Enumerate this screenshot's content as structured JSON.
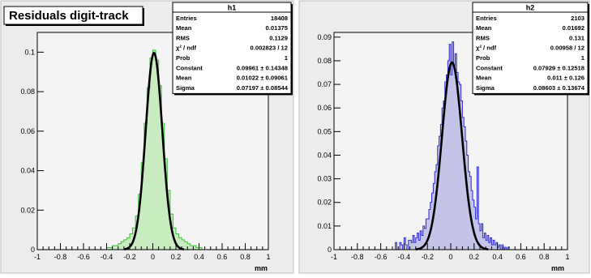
{
  "canvas_title": "Residuals digit-track",
  "colors": {
    "pad_bg": "#ececec",
    "frame_bg": "#f4f4f4",
    "fit_line": "#000000",
    "h1_fill": "#c8ecc0",
    "h1_line": "#3cc03c",
    "h2_fill": "#c4c4e8",
    "h2_line": "#2828d8"
  },
  "chart_data": [
    {
      "type": "bar",
      "histogram": "h1",
      "xlabel": "mm",
      "ylabel": "",
      "xlim": [
        -1,
        1
      ],
      "ylim": [
        0,
        0.11
      ],
      "xticks": [
        "-1",
        "-0.8",
        "-0.6",
        "-0.4",
        "-0.2",
        "0",
        "0.2",
        "0.4",
        "0.6",
        "0.8",
        "1"
      ],
      "yticks": [
        "0",
        "0.02",
        "0.04",
        "0.06",
        "0.08",
        "0.1"
      ],
      "fit": {
        "type": "gaus",
        "constant": 0.09961,
        "mean": 0.01022,
        "sigma": 0.07197
      },
      "stats": {
        "title": "h1",
        "rows": [
          {
            "label": "Entries",
            "value": "18408"
          },
          {
            "label": "Mean",
            "value": "0.01375"
          },
          {
            "label": "RMS",
            "value": "0.1129"
          },
          {
            "label": "χ² / ndf",
            "value": "0.002823 / 12"
          },
          {
            "label": "Prob",
            "value": "1"
          },
          {
            "label": "Constant",
            "value": "0.09961 ± 0.14348"
          },
          {
            "label": "Mean",
            "value": "0.01022 ± 0.09061"
          },
          {
            "label": "Sigma",
            "value": "0.07197 ± 0.08544"
          }
        ]
      },
      "bin_width": 0.025,
      "bins_x": [
        -0.4,
        -0.375,
        -0.35,
        -0.325,
        -0.3,
        -0.275,
        -0.25,
        -0.225,
        -0.2,
        -0.175,
        -0.15,
        -0.125,
        -0.1,
        -0.075,
        -0.05,
        -0.025,
        0,
        0.025,
        0.05,
        0.075,
        0.1,
        0.125,
        0.15,
        0.175,
        0.2,
        0.225,
        0.25,
        0.275,
        0.3,
        0.325,
        0.35,
        0.375,
        0.4
      ],
      "bins_y": [
        0.001,
        0.001,
        0.002,
        0.002,
        0.003,
        0.004,
        0.005,
        0.006,
        0.008,
        0.011,
        0.017,
        0.028,
        0.044,
        0.064,
        0.082,
        0.097,
        0.101,
        0.096,
        0.083,
        0.064,
        0.046,
        0.03,
        0.018,
        0.011,
        0.008,
        0.006,
        0.005,
        0.004,
        0.003,
        0.002,
        0.002,
        0.001,
        0.001
      ]
    },
    {
      "type": "bar",
      "histogram": "h2",
      "xlabel": "mm",
      "ylabel": "",
      "xlim": [
        -1,
        1
      ],
      "ylim": [
        0,
        0.092
      ],
      "xticks": [
        "-1",
        "-0.8",
        "-0.6",
        "-0.4",
        "-0.2",
        "0",
        "0.2",
        "0.4",
        "0.6",
        "0.8",
        "1"
      ],
      "yticks": [
        "0",
        "0.01",
        "0.02",
        "0.03",
        "0.04",
        "0.05",
        "0.06",
        "0.07",
        "0.08",
        "0.09"
      ],
      "fit": {
        "type": "gaus",
        "constant": 0.07929,
        "mean": 0.011,
        "sigma": 0.08603
      },
      "stats": {
        "title": "h2",
        "rows": [
          {
            "label": "Entries",
            "value": "2103"
          },
          {
            "label": "Mean",
            "value": "0.01692"
          },
          {
            "label": "RMS",
            "value": "0.131"
          },
          {
            "label": "χ² / ndf",
            "value": "0.00958 / 12"
          },
          {
            "label": "Prob",
            "value": "1"
          },
          {
            "label": "Constant",
            "value": "0.07929 ± 0.12518"
          },
          {
            "label": "Mean",
            "value": "0.011 ± 0.126"
          },
          {
            "label": "Sigma",
            "value": "0.08603 ± 0.13674"
          }
        ]
      },
      "bin_width": 0.0125,
      "bins_x": [
        -0.5,
        -0.4875,
        -0.475,
        -0.4625,
        -0.45,
        -0.4375,
        -0.425,
        -0.4125,
        -0.4,
        -0.3875,
        -0.375,
        -0.3625,
        -0.35,
        -0.3375,
        -0.325,
        -0.3125,
        -0.3,
        -0.2875,
        -0.275,
        -0.2625,
        -0.25,
        -0.2375,
        -0.225,
        -0.2125,
        -0.2,
        -0.1875,
        -0.175,
        -0.1625,
        -0.15,
        -0.1375,
        -0.125,
        -0.1125,
        -0.1,
        -0.0875,
        -0.075,
        -0.0625,
        -0.05,
        -0.0375,
        -0.025,
        -0.0125,
        0,
        0.0125,
        0.025,
        0.0375,
        0.05,
        0.0625,
        0.075,
        0.0875,
        0.1,
        0.1125,
        0.125,
        0.1375,
        0.15,
        0.1625,
        0.175,
        0.1875,
        0.2,
        0.2125,
        0.225,
        0.2375,
        0.25,
        0.2625,
        0.275,
        0.2875,
        0.3,
        0.3125,
        0.325,
        0.3375,
        0.35,
        0.3625,
        0.375,
        0.3875,
        0.4,
        0.4125,
        0.425,
        0.4375,
        0.45,
        0.4625,
        0.475,
        0.4875,
        0.5
      ],
      "bins_y": [
        0,
        0,
        0.003,
        0,
        0,
        0.003,
        0.002,
        0,
        0.005,
        0.002,
        0,
        0.004,
        0.004,
        0.003,
        0.006,
        0.003,
        0.005,
        0.007,
        0.004,
        0.008,
        0.006,
        0.01,
        0.009,
        0.013,
        0.013,
        0.017,
        0.02,
        0.024,
        0.028,
        0.033,
        0.036,
        0.044,
        0.048,
        0.053,
        0.06,
        0.063,
        0.071,
        0.074,
        0.08,
        0.087,
        0.074,
        0.088,
        0.078,
        0.083,
        0.075,
        0.071,
        0.07,
        0.063,
        0.056,
        0.052,
        0.046,
        0.04,
        0.033,
        0.031,
        0.025,
        0.021,
        0.018,
        0.013,
        0.035,
        0.011,
        0.008,
        0.011,
        0.005,
        0.007,
        0.004,
        0.006,
        0.003,
        0.005,
        0.002,
        0.004,
        0.002,
        0.003,
        0.001,
        0.002,
        0,
        0.002,
        0,
        0.001,
        0,
        0.001,
        0
      ]
    }
  ]
}
